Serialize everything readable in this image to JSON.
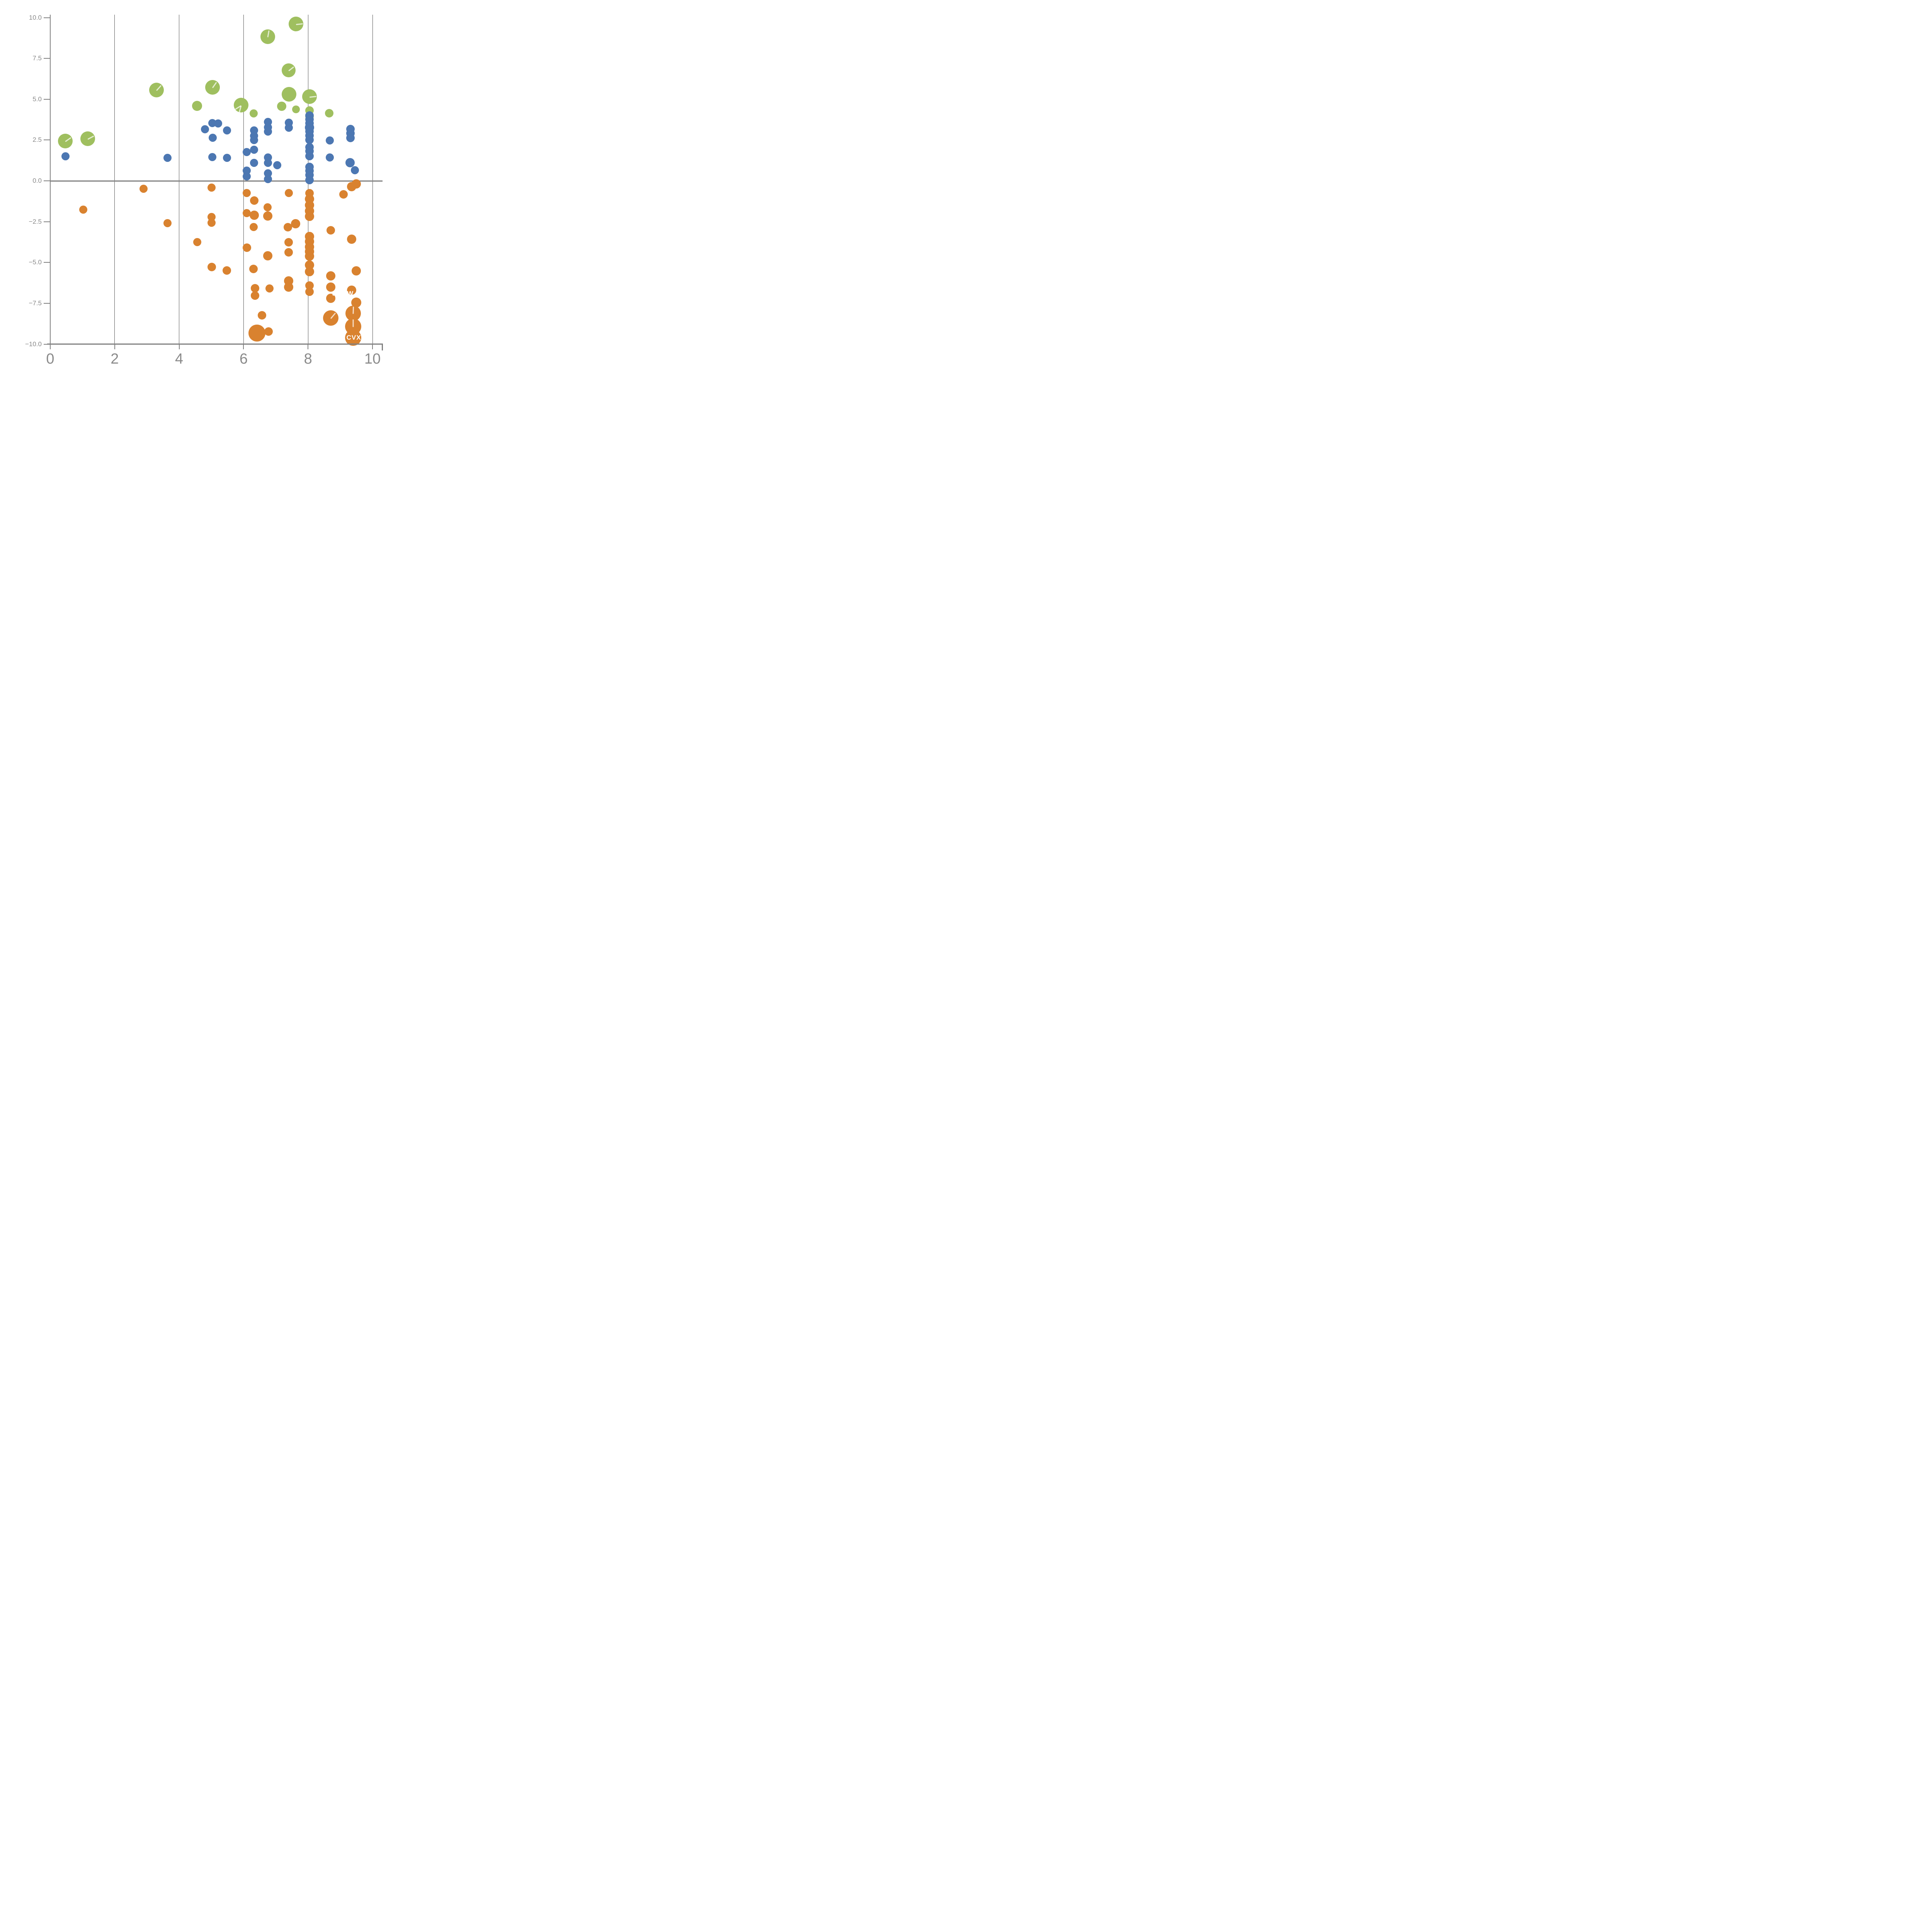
{
  "page": {
    "background": "#ffffff"
  },
  "axis": {
    "color": "#808080",
    "tick_label_color": "#8a8a8a",
    "gridline_color": "#555555",
    "zero_line_color": "#808080",
    "x_tick_labels": [
      "0",
      "2",
      "4",
      "6",
      "8",
      "10"
    ],
    "x_tick_values": [
      0,
      2,
      4,
      6,
      8,
      10
    ],
    "y_tick_labels": [
      "10.0",
      "7.5",
      "5.0",
      "2.5",
      "0.0",
      "−2.5",
      "−5.0",
      "−7.5",
      "−10.0"
    ],
    "y_tick_values": [
      10,
      7.5,
      5,
      2.5,
      0,
      -2.5,
      -5,
      -7.5,
      -10
    ]
  },
  "chart_data": {
    "type": "scatter",
    "title": "",
    "xlabel": "",
    "ylabel": "",
    "xlim": [
      0,
      10.35
    ],
    "ylim": [
      -10,
      10
    ],
    "grid": "vertical gridlines at x = 2,4,6,8,10",
    "legend": "none",
    "marker_note": "bubble size varies; large bubbles carry thin white leader-line slashes; white ticker labels visible only where they cross bubbles",
    "series": [
      {
        "name": "green",
        "color": "#9fbf5f",
        "points": [
          [
            0.47,
            2.44,
            19,
            [
              -35
            ]
          ],
          [
            1.16,
            2.59,
            19,
            [
              -28
            ]
          ],
          [
            3.3,
            5.57,
            19,
            [
              -48
            ]
          ],
          [
            5.03,
            5.72,
            19,
            [
              -55
            ]
          ],
          [
            4.56,
            4.6,
            13
          ],
          [
            5.92,
            4.64,
            19,
            [
              148,
              105
            ]
          ],
          [
            6.31,
            4.13,
            10.5
          ],
          [
            6.75,
            8.82,
            19,
            [
              -80
            ]
          ],
          [
            7.62,
            9.62,
            19,
            [
              -6
            ]
          ],
          [
            7.18,
            4.57,
            12
          ],
          [
            7.4,
            6.76,
            18,
            [
              -38
            ]
          ],
          [
            7.41,
            5.31,
            19
          ],
          [
            7.62,
            4.39,
            10
          ],
          [
            8.04,
            5.15,
            19,
            [
              -6
            ]
          ],
          [
            8.04,
            4.3,
            11
          ],
          [
            8.04,
            3.95,
            11
          ],
          [
            8.66,
            4.15,
            11
          ]
        ]
      },
      {
        "name": "blue",
        "color": "#4c77b2",
        "points": [
          [
            0.47,
            1.51,
            10.5
          ],
          [
            3.64,
            1.42,
            10.5
          ],
          [
            4.8,
            3.15,
            10.5
          ],
          [
            5.03,
            3.53,
            10.5
          ],
          [
            5.21,
            3.51,
            10.5
          ],
          [
            5.49,
            3.1,
            10.5
          ],
          [
            5.04,
            2.64,
            10.5
          ],
          [
            5.03,
            1.46,
            10.5
          ],
          [
            5.49,
            1.42,
            10.5
          ],
          [
            6.1,
            1.76,
            10.5
          ],
          [
            6.32,
            1.9,
            10.5
          ],
          [
            6.32,
            1.1,
            10.5
          ],
          [
            6.76,
            1.43,
            10.5
          ],
          [
            6.76,
            1.1,
            10.5
          ],
          [
            7.05,
            0.97,
            10.5
          ],
          [
            6.1,
            0.62,
            10.5
          ],
          [
            6.1,
            0.28,
            10.5
          ],
          [
            6.76,
            0.45,
            10.5
          ],
          [
            6.76,
            0.1,
            10.5
          ],
          [
            6.32,
            3.1,
            10.5
          ],
          [
            6.32,
            2.76,
            10.5
          ],
          [
            6.32,
            2.49,
            10.5
          ],
          [
            6.76,
            3.61,
            10.5
          ],
          [
            6.76,
            3.28,
            10.5
          ],
          [
            6.76,
            3.01,
            10.5
          ],
          [
            7.4,
            3.56,
            10.5
          ],
          [
            7.4,
            3.26,
            10.5
          ],
          [
            8.04,
            4.0,
            11
          ],
          [
            8.04,
            3.76,
            11
          ],
          [
            8.04,
            3.52,
            11
          ],
          [
            8.04,
            3.27,
            12
          ],
          [
            8.04,
            3.02,
            11
          ],
          [
            8.04,
            2.77,
            11
          ],
          [
            8.04,
            2.52,
            11
          ],
          [
            8.04,
            2.06,
            11
          ],
          [
            8.04,
            1.82,
            11
          ],
          [
            8.04,
            1.52,
            11
          ],
          [
            8.04,
            0.86,
            11
          ],
          [
            8.04,
            0.61,
            11
          ],
          [
            8.04,
            0.36,
            11
          ],
          [
            8.04,
            0.05,
            11
          ],
          [
            8.68,
            2.47,
            10.5
          ],
          [
            8.68,
            1.43,
            10.5
          ],
          [
            9.32,
            3.17,
            11
          ],
          [
            9.32,
            2.9,
            11
          ],
          [
            9.32,
            2.62,
            11
          ],
          [
            9.3,
            1.12,
            12
          ],
          [
            9.45,
            0.66,
            10.5
          ]
        ]
      },
      {
        "name": "orange",
        "color": "#d9822f",
        "points": [
          [
            1.02,
            -1.76,
            10.5
          ],
          [
            2.89,
            -0.49,
            10.5
          ],
          [
            3.64,
            -2.6,
            10.5
          ],
          [
            5.01,
            -0.42,
            10.5
          ],
          [
            5.01,
            -2.21,
            10.5
          ],
          [
            5.01,
            -2.57,
            10.5
          ],
          [
            4.56,
            -3.76,
            10.5
          ],
          [
            5.01,
            -5.27,
            11
          ],
          [
            5.48,
            -5.49,
            11
          ],
          [
            6.1,
            -0.75,
            10.5
          ],
          [
            6.33,
            -1.21,
            11
          ],
          [
            6.75,
            -1.63,
            10.5
          ],
          [
            6.1,
            -1.98,
            10.5
          ],
          [
            6.33,
            -2.11,
            12
          ],
          [
            6.75,
            -2.15,
            12
          ],
          [
            6.31,
            -2.83,
            10.5
          ],
          [
            7.38,
            -2.83,
            11
          ],
          [
            7.61,
            -2.62,
            12
          ],
          [
            6.1,
            -4.1,
            11
          ],
          [
            6.75,
            -4.59,
            12
          ],
          [
            7.4,
            -3.77,
            11
          ],
          [
            7.4,
            -4.38,
            11
          ],
          [
            6.31,
            -5.4,
            11
          ],
          [
            7.4,
            -0.74,
            10.5
          ],
          [
            8.04,
            -0.76,
            11
          ],
          [
            8.04,
            -1.12,
            12
          ],
          [
            8.04,
            -1.48,
            12
          ],
          [
            8.04,
            -1.84,
            12
          ],
          [
            8.04,
            -2.18,
            12
          ],
          [
            8.04,
            -3.4,
            12
          ],
          [
            8.04,
            -3.72,
            12
          ],
          [
            8.04,
            -4.04,
            12
          ],
          [
            8.04,
            -4.34,
            12
          ],
          [
            8.04,
            -4.62,
            12
          ],
          [
            8.04,
            -5.16,
            12
          ],
          [
            8.04,
            -5.56,
            12
          ],
          [
            8.04,
            -6.42,
            11
          ],
          [
            8.04,
            -6.8,
            11
          ],
          [
            8.7,
            -3.02,
            11
          ],
          [
            9.35,
            -3.58,
            12
          ],
          [
            9.1,
            -0.84,
            11
          ],
          [
            9.35,
            -0.35,
            12
          ],
          [
            9.5,
            -0.2,
            12
          ],
          [
            9.5,
            -5.52,
            12
          ],
          [
            8.7,
            -5.82,
            12
          ],
          [
            8.7,
            -6.52,
            12
          ],
          [
            8.7,
            -7.2,
            12
          ],
          [
            9.35,
            -6.7,
            12
          ],
          [
            9.5,
            -7.46,
            13
          ],
          [
            8.7,
            -8.4,
            20,
            [
              -50
            ]
          ],
          [
            9.4,
            -8.12,
            20,
            [
              -88
            ]
          ],
          [
            9.4,
            -8.92,
            21,
            [
              -90
            ]
          ],
          [
            9.4,
            -9.62,
            21
          ],
          [
            6.41,
            -9.32,
            22
          ],
          [
            6.77,
            -9.22,
            11
          ],
          [
            6.57,
            -8.24,
            11
          ],
          [
            6.35,
            -6.57,
            11
          ],
          [
            6.35,
            -7.02,
            11
          ],
          [
            6.8,
            -6.6,
            10.5
          ],
          [
            7.4,
            -6.12,
            12
          ],
          [
            7.4,
            -6.52,
            12
          ]
        ]
      }
    ],
    "annotations": [
      {
        "text": "SCHW",
        "x": 9.08,
        "y": -6.92,
        "color": "#ffffff"
      },
      {
        "text": "CVX",
        "x": 9.42,
        "y": -9.6,
        "color": "#ffffff"
      }
    ]
  }
}
